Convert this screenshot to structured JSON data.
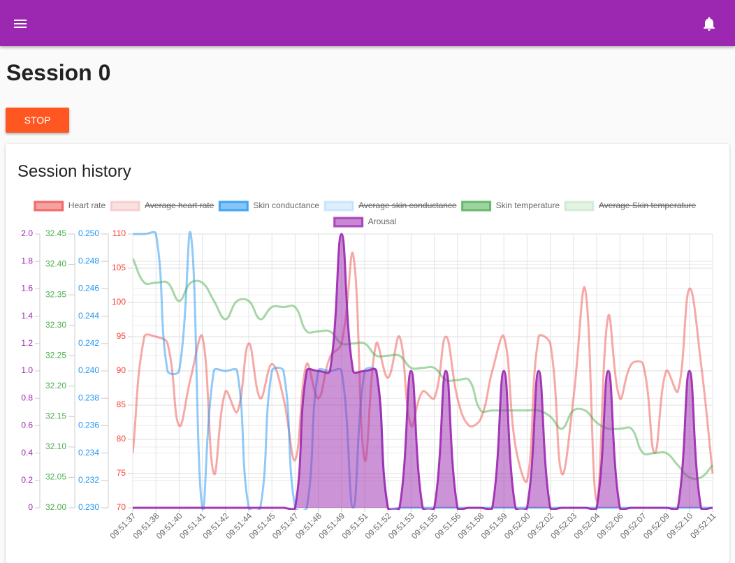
{
  "page": {
    "title": "Session 0",
    "button": "STOP",
    "card_title": "Session history"
  },
  "chart_data": {
    "type": "line",
    "categories": [
      "09:51:37",
      null,
      "09:51:38",
      null,
      "09:51:40",
      null,
      "09:51:41",
      null,
      "09:51:42",
      null,
      "09:51:44",
      null,
      "09:51:45",
      null,
      "09:51:47",
      null,
      "09:51:48",
      null,
      "09:51:49",
      null,
      "09:51:51",
      null,
      "09:51:52",
      null,
      "09:51:53",
      null,
      "09:51:55",
      null,
      "09:51:56",
      null,
      "09:51:58",
      null,
      "09:51:59",
      null,
      "09:52:00",
      null,
      "09:52:02",
      null,
      "09:52:03",
      null,
      "09:52:04",
      null,
      "09:52:06",
      null,
      "09:52:07",
      null,
      "09:52:09",
      null,
      "09:52:10",
      null,
      "09:52:11"
    ],
    "axes": [
      {
        "color": "#9c27b0",
        "ylim": [
          0,
          2
        ],
        "yticks": [
          0,
          0.2,
          0.4,
          0.6,
          0.8,
          {
            "value": 1,
            "label": "1.0"
          },
          1.2,
          1.4,
          1.6,
          1.8,
          {
            "value": 2,
            "label": "2.0"
          }
        ]
      },
      {
        "color": "#4caf50",
        "ylim": [
          32,
          32.45
        ],
        "yticks": [
          {
            "value": 32,
            "label": "32.00"
          },
          32.05,
          {
            "value": 32.1,
            "label": "32.10"
          },
          32.15,
          {
            "value": 32.2,
            "label": "32.20"
          },
          32.25,
          {
            "value": 32.3,
            "label": "32.30"
          },
          32.35,
          {
            "value": 32.4,
            "label": "32.40"
          },
          32.45
        ]
      },
      {
        "color": "#2196f3",
        "ylim": [
          0.23,
          0.25
        ],
        "yticks": [
          {
            "value": 0.23,
            "label": "0.230"
          },
          0.232,
          0.234,
          0.236,
          0.238,
          {
            "value": 0.24,
            "label": "0.240"
          },
          0.242,
          0.244,
          0.246,
          0.248,
          {
            "value": 0.25,
            "label": "0.250"
          }
        ]
      },
      {
        "color": "#f44336",
        "ylim": [
          70,
          110
        ],
        "yticks": [
          70,
          75,
          80,
          85,
          90,
          95,
          100,
          105,
          110
        ]
      }
    ],
    "grid": true,
    "legend": "top",
    "series": [
      {
        "name": "Heart rate",
        "color": "#ef5350",
        "axis": 3,
        "values": [
          78,
          95,
          95,
          94,
          82,
          89,
          95,
          75,
          87,
          84,
          94,
          86,
          91,
          86,
          77,
          91,
          86,
          92,
          94,
          107,
          77,
          94,
          89,
          95,
          82,
          87,
          86,
          95,
          86,
          82,
          83,
          90,
          95,
          79,
          74,
          95,
          94,
          75,
          86,
          102,
          71,
          98,
          86,
          91,
          91,
          78,
          90,
          87,
          102,
          91,
          75
        ]
      },
      {
        "name": "Average heart rate",
        "color": "#ef9a9a",
        "hidden": true
      },
      {
        "name": "Skin conductance",
        "color": "#2196f3",
        "axis": 2,
        "values": [
          0.25,
          0.25,
          0.25,
          0.24,
          0.24,
          0.25,
          0.23,
          0.24,
          0.24,
          0.24,
          0.23,
          0.23,
          0.24,
          0.24,
          0.23,
          0.23,
          0.24,
          0.24,
          0.24,
          0.23,
          0.24,
          0.24,
          0.23,
          0.23,
          0.23,
          0.23,
          0.23,
          0.23,
          0.23,
          0.23,
          0.23,
          0.23,
          0.23,
          0.23,
          0.23,
          0.23,
          0.23,
          0.23,
          0.23,
          0.23,
          0.23,
          0.23,
          0.23,
          0.23,
          0.23,
          0.23,
          0.23,
          0.23,
          0.23,
          0.23,
          0.23
        ]
      },
      {
        "name": "Average skin conductance",
        "color": "#90caf9",
        "hidden": true
      },
      {
        "name": "Skin temperature",
        "color": "#4caf50",
        "axis": 1,
        "values": [
          32.41,
          32.37,
          32.37,
          32.37,
          32.34,
          32.37,
          32.37,
          32.34,
          32.31,
          32.34,
          32.34,
          32.31,
          32.33,
          32.33,
          32.33,
          32.29,
          32.29,
          32.29,
          32.27,
          32.27,
          32.27,
          32.25,
          32.25,
          32.25,
          32.23,
          32.23,
          32.23,
          32.21,
          32.21,
          32.21,
          32.16,
          32.16,
          32.16,
          32.16,
          32.16,
          32.16,
          32.15,
          32.13,
          32.16,
          32.16,
          32.14,
          32.13,
          32.13,
          32.13,
          32.09,
          32.09,
          32.09,
          32.07,
          32.05,
          32.05,
          32.07
        ]
      },
      {
        "name": "Average Skin temperature",
        "color": "#a5d6a7",
        "hidden": true
      },
      {
        "name": "Arousal",
        "color": "#9c27b0",
        "axis": 0,
        "fill": true,
        "values": [
          0,
          0,
          0,
          0,
          0,
          0,
          0,
          0,
          0,
          0,
          0,
          0,
          0,
          0,
          0,
          1,
          1,
          1,
          2,
          1,
          1,
          1,
          0,
          0,
          1,
          0,
          0,
          1,
          0,
          0,
          0,
          0,
          1,
          0,
          0,
          1,
          0,
          0,
          0,
          0,
          0,
          1,
          0,
          0,
          0,
          0,
          0,
          0,
          1,
          0,
          0
        ]
      }
    ]
  }
}
